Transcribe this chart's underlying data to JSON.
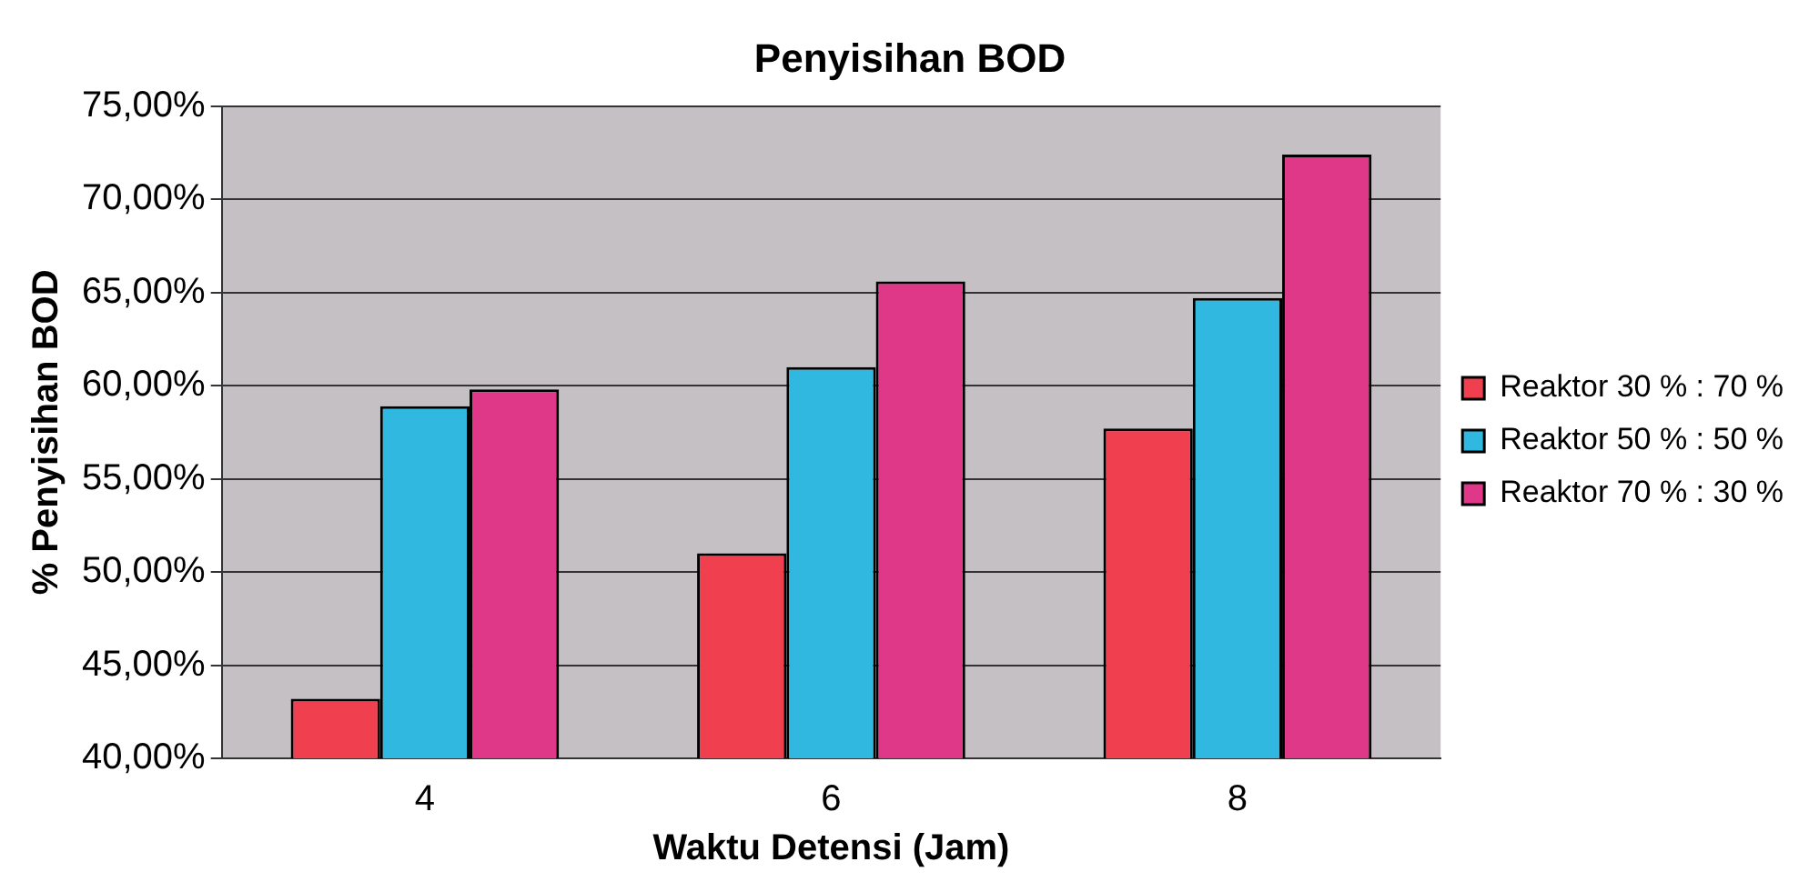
{
  "chart_data": {
    "type": "bar",
    "title": "Penyisihan BOD",
    "xlabel": "Waktu Detensi (Jam)",
    "ylabel": "% Penyisihan BOD",
    "categories": [
      "4",
      "6",
      "8"
    ],
    "series": [
      {
        "name": "Reaktor 30 % : 70 %",
        "color": "#f04050",
        "values": [
          43.2,
          51.0,
          57.7
        ]
      },
      {
        "name": "Reaktor 50 % : 50 %",
        "color": "#30b8e0",
        "values": [
          58.9,
          61.0,
          64.7
        ]
      },
      {
        "name": "Reaktor 70 % : 30 %",
        "color": "#e03888",
        "values": [
          59.8,
          65.6,
          72.4
        ]
      }
    ],
    "ylim": [
      40,
      75
    ],
    "yticks": [
      {
        "value": 40,
        "label": "40,00%"
      },
      {
        "value": 45,
        "label": "45,00%"
      },
      {
        "value": 50,
        "label": "50,00%"
      },
      {
        "value": 55,
        "label": "55,00%"
      },
      {
        "value": 60,
        "label": "60,00%"
      },
      {
        "value": 65,
        "label": "65,00%"
      },
      {
        "value": 70,
        "label": "70,00%"
      },
      {
        "value": 75,
        "label": "75,00%"
      }
    ],
    "grid": "y",
    "legend": "right"
  }
}
